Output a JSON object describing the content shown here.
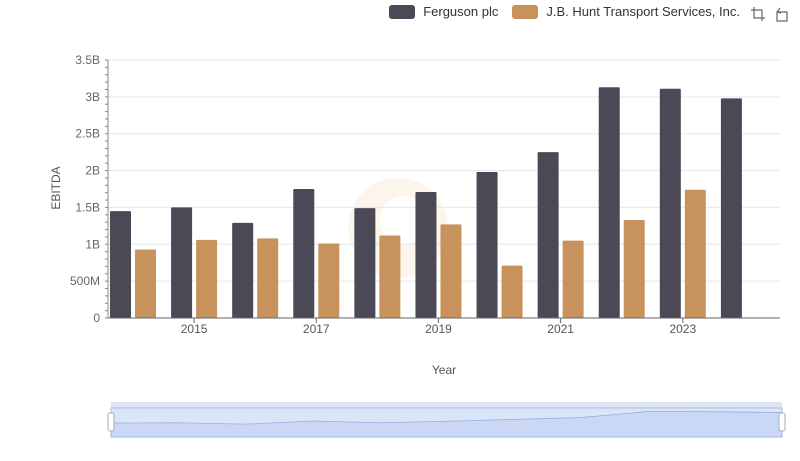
{
  "colors": {
    "ferguson": "#4a4955",
    "jbhunt": "#c8925c",
    "grid": "#e3e6ee",
    "axis": "#666666",
    "slider_fill": "#dbe5fa",
    "slider_border": "#b0c1e6"
  },
  "toolbox": {
    "zoom_icon": "zoom-icon",
    "reset_icon": "restore-icon"
  },
  "chart_data": {
    "type": "bar",
    "xlabel": "Year",
    "ylabel": "EBITDA",
    "categories": [
      "2014",
      "2015",
      "2016",
      "2017",
      "2018",
      "2019",
      "2020",
      "2021",
      "2022",
      "2023",
      "2024"
    ],
    "x_tick_labels": [
      "2015",
      "2017",
      "2019",
      "2021",
      "2023"
    ],
    "y_tick_labels": [
      "0",
      "500M",
      "1B",
      "1.5B",
      "2B",
      "2.5B",
      "3B",
      "3.5B"
    ],
    "ylim": [
      0,
      3500000000
    ],
    "series": [
      {
        "name": "Ferguson plc",
        "values": [
          1450000000,
          1500000000,
          1290000000,
          1750000000,
          1490000000,
          1710000000,
          1980000000,
          2250000000,
          3130000000,
          3110000000,
          2980000000
        ]
      },
      {
        "name": "J.B. Hunt Transport Services, Inc.",
        "values": [
          930000000,
          1060000000,
          1080000000,
          1010000000,
          1120000000,
          1270000000,
          710000000,
          1050000000,
          1330000000,
          1740000000,
          null
        ]
      }
    ],
    "grid": true,
    "legend": "top-right",
    "data_zoom": true
  }
}
